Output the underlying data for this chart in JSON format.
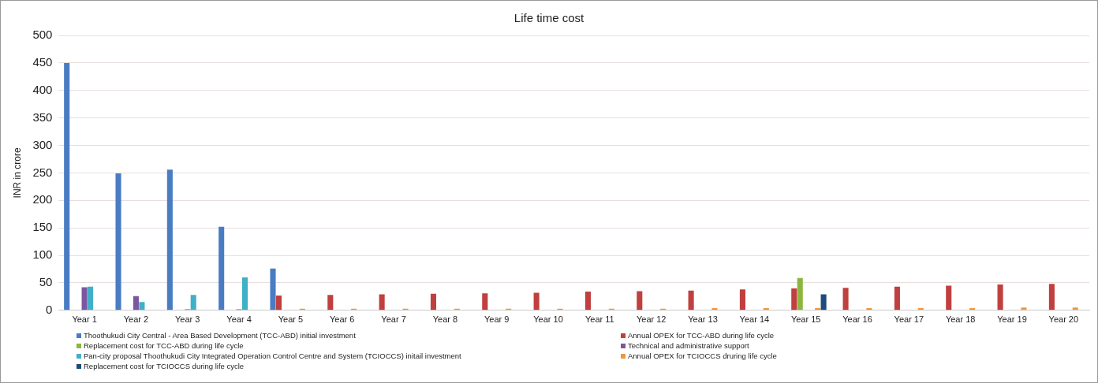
{
  "chart_data": {
    "type": "bar",
    "title": "Life time cost",
    "ylabel": "INR in crore",
    "categories": [
      "Year 1",
      "Year 2",
      "Year 3",
      "Year 4",
      "Year 5",
      "Year 6",
      "Year 7",
      "Year 8",
      "Year 9",
      "Year 10",
      "Year 11",
      "Year 12",
      "Year 13",
      "Year 14",
      "Year 15",
      "Year 16",
      "Year 17",
      "Year 18",
      "Year 19",
      "Year 20"
    ],
    "series": [
      {
        "name": "Thoothukudi City Central - Area Based Development  (TCC-ABD) initial investment",
        "color": "#4a7cc4",
        "values": [
          450,
          249,
          256,
          152,
          76,
          null,
          null,
          null,
          null,
          null,
          null,
          null,
          null,
          null,
          null,
          null,
          null,
          null,
          null,
          null
        ]
      },
      {
        "name": "Annual OPEX for TCC-ABD during life cycle",
        "color": "#c0403f",
        "values": [
          null,
          null,
          null,
          null,
          27,
          28,
          29,
          30,
          31,
          32,
          34,
          35,
          36,
          38,
          40,
          41,
          43,
          45,
          47,
          48
        ]
      },
      {
        "name": "Replacement cost for TCC-ABD during life cycle",
        "color": "#8db63f",
        "values": [
          null,
          null,
          null,
          null,
          null,
          null,
          null,
          null,
          null,
          null,
          null,
          null,
          null,
          null,
          59,
          null,
          null,
          null,
          null,
          null
        ]
      },
      {
        "name": "Technical and administrative support",
        "color": "#7a58a0",
        "values": [
          42,
          26,
          2,
          2,
          null,
          null,
          null,
          null,
          null,
          null,
          null,
          null,
          null,
          null,
          null,
          null,
          null,
          null,
          null,
          null
        ]
      },
      {
        "name": "Pan-city proposal Thoothukudi City Integrated Operation Control Centre and System (TCIOCCS) initail investment",
        "color": "#3fb0c8",
        "values": [
          43,
          15,
          28,
          60,
          null,
          null,
          null,
          null,
          null,
          null,
          null,
          null,
          null,
          null,
          null,
          null,
          null,
          null,
          null,
          null
        ]
      },
      {
        "name": "Annual OPEX for TCIOCCS druring life cycle",
        "color": "#f0963e",
        "values": [
          null,
          null,
          null,
          null,
          3,
          3,
          3,
          3,
          3,
          3,
          3,
          3,
          4,
          4,
          4,
          4,
          4,
          4,
          5,
          5
        ]
      },
      {
        "name": "Replacement cost for TCIOCCS during life cycle",
        "color": "#1f4a7c",
        "values": [
          null,
          null,
          null,
          null,
          null,
          null,
          null,
          null,
          null,
          null,
          null,
          null,
          null,
          null,
          29,
          null,
          null,
          null,
          null,
          null
        ]
      }
    ],
    "ylim": [
      0,
      500
    ],
    "yticks": [
      0,
      50,
      100,
      150,
      200,
      250,
      300,
      350,
      400,
      450,
      500
    ],
    "grid": "y",
    "legend": "bottom"
  }
}
